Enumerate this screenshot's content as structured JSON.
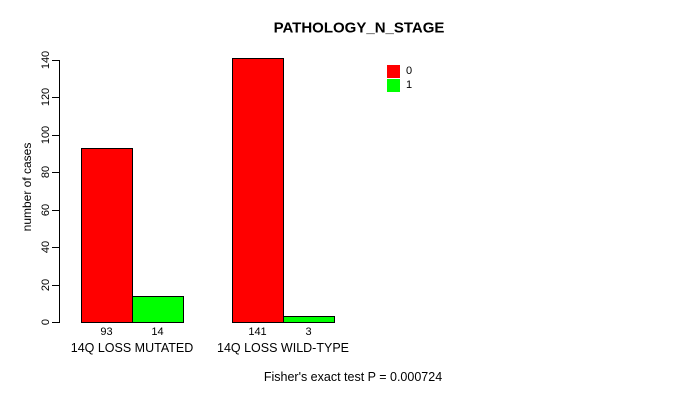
{
  "chart_data": {
    "type": "bar",
    "title": "PATHOLOGY_N_STAGE",
    "xlabel": "",
    "ylabel": "number of cases",
    "ylim": [
      0,
      140
    ],
    "yticks": [
      0,
      20,
      40,
      60,
      80,
      100,
      120,
      140
    ],
    "grid": false,
    "categories": [
      "14Q LOSS MUTATED",
      "14Q LOSS WILD-TYPE"
    ],
    "series": [
      {
        "name": "0",
        "color": "#ff0000",
        "values": [
          93,
          141
        ]
      },
      {
        "name": "1",
        "color": "#00ff00",
        "values": [
          14,
          3
        ]
      }
    ],
    "bar_value_labels": [
      [
        "93",
        "141"
      ],
      [
        "14",
        "3"
      ]
    ],
    "legend": {
      "position": "top-right",
      "entries": [
        {
          "label": "0",
          "color": "#ff0000"
        },
        {
          "label": "1",
          "color": "#00ff00"
        }
      ]
    },
    "footnote": "Fisher's exact test P = 0.000724"
  }
}
